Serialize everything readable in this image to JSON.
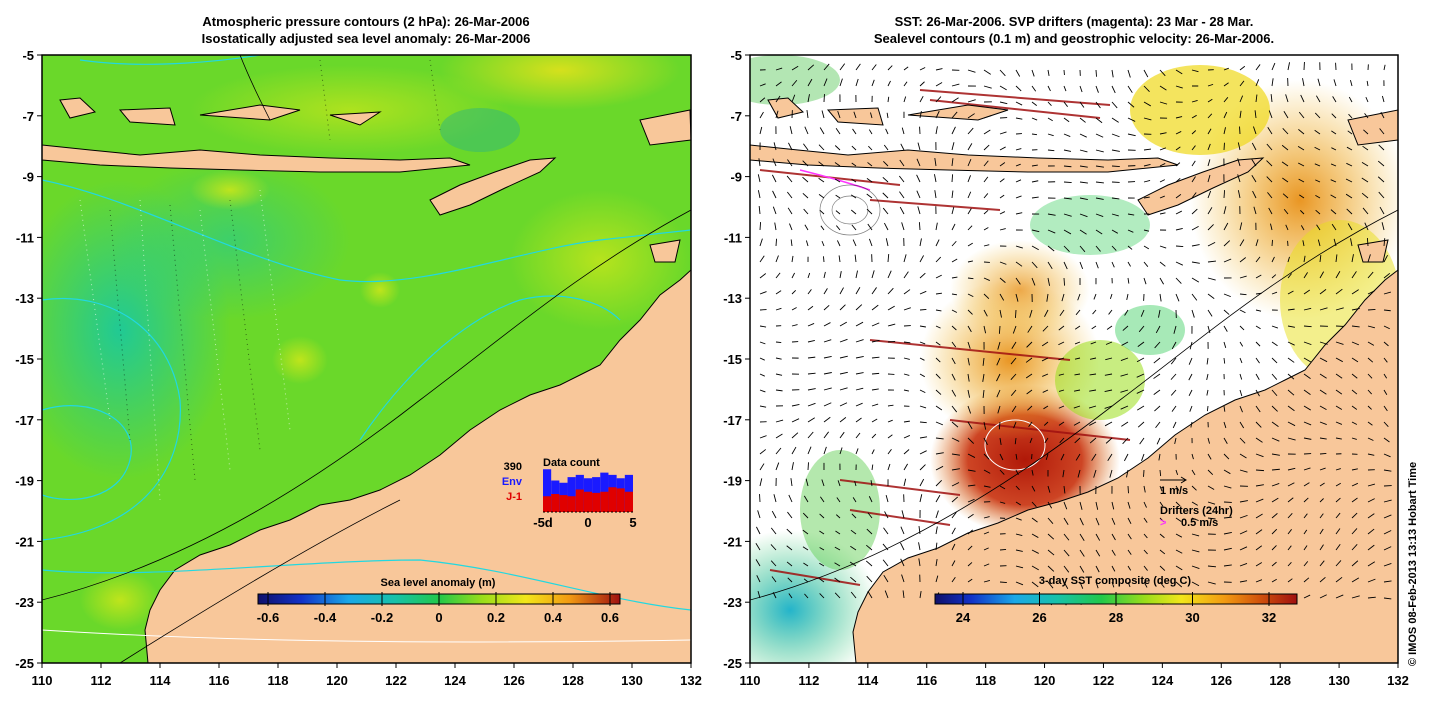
{
  "left_panel": {
    "title_line1": "Atmospheric pressure contours (2 hPa): 26-Mar-2006",
    "title_line2": "Isostatically adjusted sea level anomaly: 26-Mar-2006",
    "x_ticks": [
      "110",
      "112",
      "114",
      "116",
      "118",
      "120",
      "122",
      "124",
      "126",
      "128",
      "130",
      "132"
    ],
    "y_ticks": [
      "-5",
      "-7",
      "-9",
      "-11",
      "-13",
      "-15",
      "-17",
      "-19",
      "-21",
      "-23",
      "-25"
    ],
    "colorbar": {
      "label": "Sea level anomaly (m)",
      "ticks": [
        "-0.6",
        "-0.4",
        "-0.2",
        "0",
        "0.2",
        "0.4",
        "0.6"
      ]
    },
    "data_count": {
      "title": "Data count",
      "max_value": "390",
      "env_label": "Env",
      "j1_label": "J-1",
      "axis_labels": [
        "-5d",
        "0",
        "5"
      ],
      "env_counts": [
        380,
        280,
        260,
        310,
        330,
        300,
        310,
        350,
        330,
        300,
        330
      ],
      "j1_counts": [
        140,
        160,
        150,
        140,
        200,
        180,
        170,
        180,
        220,
        210,
        180
      ],
      "colors": {
        "env": "#1a1aff",
        "j1": "#e00000"
      }
    }
  },
  "right_panel": {
    "title_line1": "SST: 26-Mar-2006. SVP drifters (magenta): 23 Mar - 28 Mar.",
    "title_line2": "Sealevel contours (0.1 m) and geostrophic velocity: 26-Mar-2006.",
    "x_ticks": [
      "110",
      "112",
      "114",
      "116",
      "118",
      "120",
      "122",
      "124",
      "126",
      "128",
      "130",
      "132"
    ],
    "y_ticks": [
      "-5",
      "-7",
      "-9",
      "-11",
      "-13",
      "-15",
      "-17",
      "-19",
      "-21",
      "-23",
      "-25"
    ],
    "colorbar": {
      "label": "3-day SST composite (deg C)",
      "ticks": [
        "24",
        "26",
        "28",
        "30",
        "32"
      ]
    },
    "velocity_scale_label": "1 m/s",
    "drifters_label": "Drifters (24hr)",
    "drifters_scale": "0.5 m/s"
  },
  "credit": "© IMOS 08-Feb-2013 13:13 Hobart Time",
  "colors": {
    "land": "#f8c79a",
    "contour_cyan": "#22d8e0",
    "magenta": "#ff33ff"
  }
}
